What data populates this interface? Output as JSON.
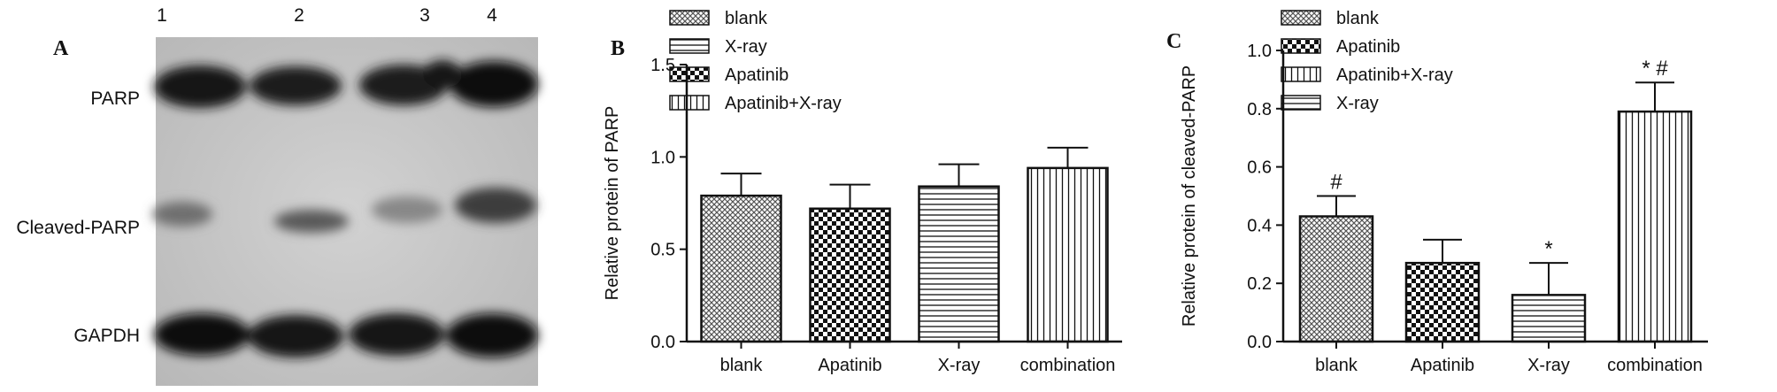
{
  "panel_a": {
    "letter": "A",
    "lane_numbers": [
      "1",
      "2",
      "3",
      "4"
    ],
    "row_labels": [
      "PARP",
      "Cleaved-PARP",
      "GAPDH"
    ]
  },
  "chart_data": [
    {
      "panel": "B",
      "type": "bar",
      "ylabel": "Relative protein of PARP",
      "xlabel": "",
      "ylim": [
        0,
        1.5
      ],
      "yticks": [
        "0.0",
        "0.5",
        "1.0",
        "1.5"
      ],
      "categories": [
        "blank",
        "Apatinib",
        "X-ray",
        "combination"
      ],
      "values": [
        0.79,
        0.72,
        0.84,
        0.94
      ],
      "errors": [
        0.12,
        0.13,
        0.12,
        0.11
      ],
      "patterns": [
        "crosshatch",
        "checker",
        "hlines",
        "vlines"
      ],
      "annotations": [
        "",
        "",
        "",
        ""
      ],
      "legend": [
        {
          "label": "blank",
          "pattern": "crosshatch"
        },
        {
          "label": "X-ray",
          "pattern": "hlines"
        },
        {
          "label": "Apatinib",
          "pattern": "checker"
        },
        {
          "label": "Apatinib+X-ray",
          "pattern": "vlines"
        }
      ],
      "legend_position": "top-left",
      "grid": false
    },
    {
      "panel": "C",
      "type": "bar",
      "ylabel": "Relative protein of cleaved-PARP",
      "xlabel": "",
      "ylim": [
        0,
        1.0
      ],
      "yticks": [
        "0.0",
        "0.2",
        "0.4",
        "0.6",
        "0.8",
        "1.0"
      ],
      "categories": [
        "blank",
        "Apatinib",
        "X-ray",
        "combination"
      ],
      "values": [
        0.43,
        0.27,
        0.16,
        0.79
      ],
      "errors": [
        0.07,
        0.08,
        0.11,
        0.1
      ],
      "patterns": [
        "crosshatch",
        "checker",
        "hlines",
        "vlines"
      ],
      "annotations": [
        "#",
        "",
        "*",
        "* #"
      ],
      "legend": [
        {
          "label": "blank",
          "pattern": "crosshatch"
        },
        {
          "label": "Apatinib",
          "pattern": "checker"
        },
        {
          "label": "Apatinib+X-ray",
          "pattern": "vlines"
        },
        {
          "label": "X-ray",
          "pattern": "hlines"
        }
      ],
      "legend_position": "top-left",
      "grid": false
    }
  ]
}
